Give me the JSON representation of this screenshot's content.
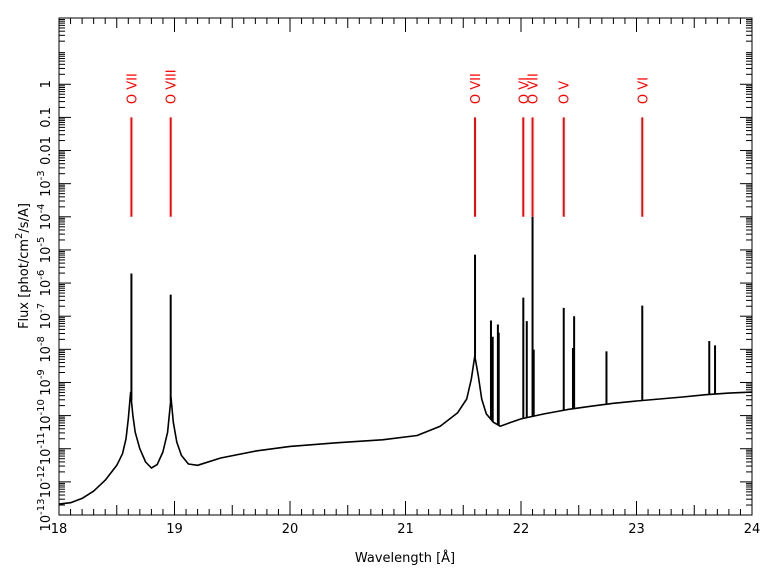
{
  "chart_data": {
    "type": "line",
    "title": "",
    "xlabel": "Wavelength [Å]",
    "ylabel": "Flux [phot/cm²/s/A]",
    "ylabel_parts": [
      "Flux [phot/cm",
      "2",
      "/s/A]"
    ],
    "xlim": [
      18,
      24
    ],
    "ylim_log10": [
      -14,
      1
    ],
    "y_scale": "log",
    "grid": false,
    "x_ticks": [
      18,
      19,
      20,
      21,
      22,
      23,
      24
    ],
    "x_tick_labels": [
      "18",
      "19",
      "20",
      "21",
      "22",
      "23",
      "24"
    ],
    "y_ticks": [
      {
        "exp": -14,
        "base": "10",
        "sup": "-13"
      },
      {
        "exp": -13,
        "base": "10",
        "sup": "-12"
      },
      {
        "exp": -12,
        "base": "10",
        "sup": "-11"
      },
      {
        "exp": -11,
        "base": "10",
        "sup": "-10"
      },
      {
        "exp": -10,
        "base": "10",
        "sup": "-9"
      },
      {
        "exp": -9,
        "base": "10",
        "sup": "-8"
      },
      {
        "exp": -8,
        "base": "10",
        "sup": "-7"
      },
      {
        "exp": -7,
        "base": "10",
        "sup": "-6"
      },
      {
        "exp": -6,
        "base": "10",
        "sup": "-5"
      },
      {
        "exp": -5,
        "base": "10",
        "sup": "-4"
      },
      {
        "exp": -4,
        "base": "10",
        "sup": "-3"
      },
      {
        "exp": -3,
        "base": "0.01",
        "sup": ""
      },
      {
        "exp": -2,
        "base": "0.1",
        "sup": ""
      },
      {
        "exp": -1,
        "base": "1",
        "sup": ""
      }
    ],
    "series": [
      {
        "color": "#000000",
        "continuum": [
          [
            18.0,
            -13.67
          ],
          [
            18.1,
            -13.63
          ],
          [
            18.2,
            -13.5
          ],
          [
            18.3,
            -13.28
          ],
          [
            18.4,
            -12.95
          ],
          [
            18.5,
            -12.5
          ],
          [
            18.55,
            -12.15
          ],
          [
            18.58,
            -11.7
          ],
          [
            18.6,
            -11.1
          ],
          [
            18.62,
            -10.3
          ],
          [
            18.64,
            -11.0
          ],
          [
            18.66,
            -11.5
          ],
          [
            18.7,
            -12.0
          ],
          [
            18.75,
            -12.4
          ],
          [
            18.8,
            -12.58
          ],
          [
            18.85,
            -12.48
          ],
          [
            18.9,
            -12.1
          ],
          [
            18.94,
            -11.5
          ],
          [
            18.96,
            -10.8
          ],
          [
            18.97,
            -10.45
          ],
          [
            18.99,
            -11.2
          ],
          [
            19.02,
            -11.8
          ],
          [
            19.06,
            -12.2
          ],
          [
            19.12,
            -12.46
          ],
          [
            19.2,
            -12.5
          ],
          [
            19.4,
            -12.28
          ],
          [
            19.7,
            -12.07
          ],
          [
            20.0,
            -11.93
          ],
          [
            20.4,
            -11.82
          ],
          [
            20.8,
            -11.73
          ],
          [
            21.1,
            -11.6
          ],
          [
            21.3,
            -11.32
          ],
          [
            21.45,
            -10.92
          ],
          [
            21.53,
            -10.5
          ],
          [
            21.57,
            -9.9
          ],
          [
            21.6,
            -9.2
          ],
          [
            21.63,
            -9.8
          ],
          [
            21.66,
            -10.5
          ],
          [
            21.7,
            -10.95
          ],
          [
            21.76,
            -11.2
          ],
          [
            21.82,
            -11.32
          ],
          [
            21.9,
            -11.22
          ],
          [
            22.0,
            -11.1
          ],
          [
            22.2,
            -10.95
          ],
          [
            22.4,
            -10.82
          ],
          [
            22.6,
            -10.72
          ],
          [
            22.8,
            -10.63
          ],
          [
            23.0,
            -10.56
          ],
          [
            23.2,
            -10.5
          ],
          [
            23.4,
            -10.44
          ],
          [
            23.6,
            -10.37
          ],
          [
            23.8,
            -10.32
          ],
          [
            24.0,
            -10.29
          ]
        ],
        "spikes": [
          [
            18.627,
            -6.71
          ],
          [
            18.967,
            -7.35
          ],
          [
            21.602,
            -6.14
          ],
          [
            21.74,
            -8.13
          ],
          [
            21.755,
            -8.62
          ],
          [
            21.8,
            -8.25
          ],
          [
            21.807,
            -8.5
          ],
          [
            22.02,
            -7.44
          ],
          [
            22.05,
            -8.15
          ],
          [
            22.1,
            -5.0
          ],
          [
            22.11,
            -9.01
          ],
          [
            22.37,
            -7.75
          ],
          [
            22.45,
            -8.96
          ],
          [
            22.46,
            -8.0
          ],
          [
            22.74,
            -9.06
          ],
          [
            23.05,
            -7.68
          ],
          [
            23.63,
            -8.75
          ],
          [
            23.68,
            -8.88
          ]
        ]
      }
    ],
    "annotations": {
      "color": "#ff0000",
      "tick_top_exp": -2.0,
      "tick_bottom_exp": -5.0,
      "lines": [
        {
          "label": "O VII",
          "x": 18.627
        },
        {
          "label": "O VIII",
          "x": 18.967
        },
        {
          "label": "O VII",
          "x": 21.602
        },
        {
          "label": "O VI",
          "x": 22.02
        },
        {
          "label": "O VII",
          "x": 22.1
        },
        {
          "label": "O V",
          "x": 22.37
        },
        {
          "label": "O VI",
          "x": 23.05
        }
      ]
    }
  }
}
